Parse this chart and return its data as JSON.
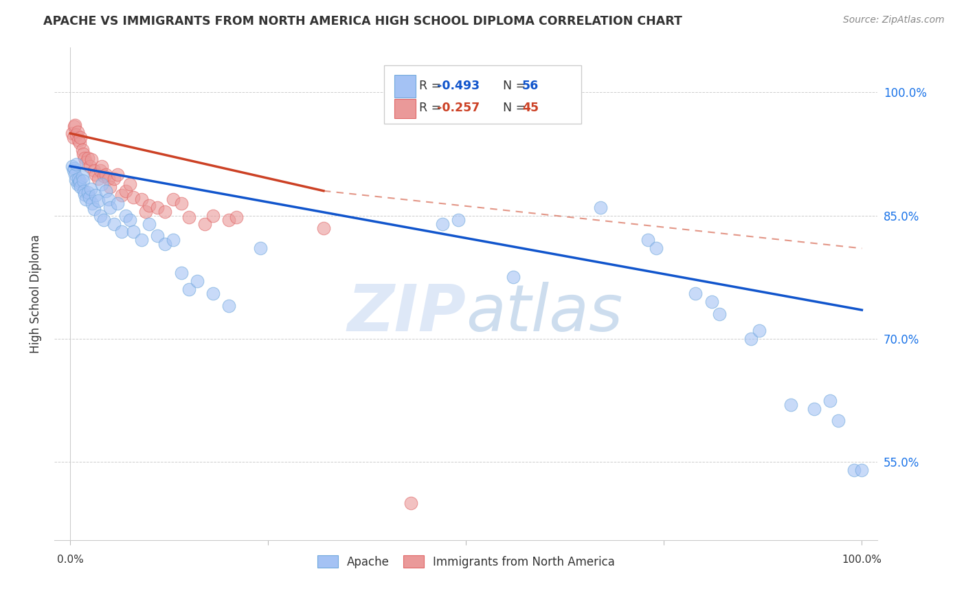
{
  "title": "APACHE VS IMMIGRANTS FROM NORTH AMERICA HIGH SCHOOL DIPLOMA CORRELATION CHART",
  "source": "Source: ZipAtlas.com",
  "ylabel": "High School Diploma",
  "ytick_labels": [
    "55.0%",
    "70.0%",
    "85.0%",
    "100.0%"
  ],
  "ytick_values": [
    0.55,
    0.7,
    0.85,
    1.0
  ],
  "legend_blue_label": "Apache",
  "legend_pink_label": "Immigrants from North America",
  "watermark_zip": "ZIP",
  "watermark_atlas": "atlas",
  "blue_color": "#a4c2f4",
  "pink_color": "#ea9999",
  "blue_edge_color": "#6fa8dc",
  "pink_edge_color": "#e06666",
  "blue_line_color": "#1155cc",
  "pink_line_color": "#cc4125",
  "blue_scatter": [
    [
      0.002,
      0.91
    ],
    [
      0.004,
      0.905
    ],
    [
      0.005,
      0.907
    ],
    [
      0.006,
      0.9
    ],
    [
      0.007,
      0.893
    ],
    [
      0.008,
      0.912
    ],
    [
      0.009,
      0.888
    ],
    [
      0.01,
      0.895
    ],
    [
      0.011,
      0.89
    ],
    [
      0.012,
      0.892
    ],
    [
      0.013,
      0.885
    ],
    [
      0.015,
      0.897
    ],
    [
      0.016,
      0.892
    ],
    [
      0.017,
      0.88
    ],
    [
      0.018,
      0.876
    ],
    [
      0.02,
      0.87
    ],
    [
      0.022,
      0.878
    ],
    [
      0.024,
      0.872
    ],
    [
      0.026,
      0.882
    ],
    [
      0.028,
      0.865
    ],
    [
      0.03,
      0.858
    ],
    [
      0.032,
      0.875
    ],
    [
      0.035,
      0.868
    ],
    [
      0.038,
      0.85
    ],
    [
      0.04,
      0.888
    ],
    [
      0.042,
      0.845
    ],
    [
      0.045,
      0.88
    ],
    [
      0.048,
      0.87
    ],
    [
      0.05,
      0.86
    ],
    [
      0.055,
      0.84
    ],
    [
      0.06,
      0.865
    ],
    [
      0.065,
      0.83
    ],
    [
      0.07,
      0.85
    ],
    [
      0.075,
      0.845
    ],
    [
      0.08,
      0.83
    ],
    [
      0.09,
      0.82
    ],
    [
      0.1,
      0.84
    ],
    [
      0.11,
      0.825
    ],
    [
      0.12,
      0.815
    ],
    [
      0.13,
      0.82
    ],
    [
      0.14,
      0.78
    ],
    [
      0.15,
      0.76
    ],
    [
      0.16,
      0.77
    ],
    [
      0.18,
      0.755
    ],
    [
      0.2,
      0.74
    ],
    [
      0.24,
      0.81
    ],
    [
      0.47,
      0.84
    ],
    [
      0.49,
      0.845
    ],
    [
      0.56,
      0.775
    ],
    [
      0.67,
      0.86
    ],
    [
      0.73,
      0.82
    ],
    [
      0.74,
      0.81
    ],
    [
      0.79,
      0.755
    ],
    [
      0.81,
      0.745
    ],
    [
      0.82,
      0.73
    ],
    [
      0.86,
      0.7
    ],
    [
      0.87,
      0.71
    ],
    [
      0.91,
      0.62
    ],
    [
      0.94,
      0.615
    ],
    [
      0.96,
      0.625
    ],
    [
      0.97,
      0.6
    ],
    [
      0.99,
      0.54
    ],
    [
      1.0,
      0.54
    ]
  ],
  "pink_scatter": [
    [
      0.002,
      0.95
    ],
    [
      0.004,
      0.945
    ],
    [
      0.005,
      0.958
    ],
    [
      0.006,
      0.96
    ],
    [
      0.008,
      0.948
    ],
    [
      0.009,
      0.952
    ],
    [
      0.01,
      0.942
    ],
    [
      0.012,
      0.938
    ],
    [
      0.013,
      0.945
    ],
    [
      0.015,
      0.93
    ],
    [
      0.016,
      0.925
    ],
    [
      0.018,
      0.92
    ],
    [
      0.02,
      0.915
    ],
    [
      0.022,
      0.92
    ],
    [
      0.025,
      0.91
    ],
    [
      0.027,
      0.918
    ],
    [
      0.03,
      0.905
    ],
    [
      0.032,
      0.9
    ],
    [
      0.035,
      0.895
    ],
    [
      0.038,
      0.905
    ],
    [
      0.04,
      0.91
    ],
    [
      0.042,
      0.898
    ],
    [
      0.045,
      0.9
    ],
    [
      0.048,
      0.895
    ],
    [
      0.05,
      0.885
    ],
    [
      0.055,
      0.895
    ],
    [
      0.06,
      0.9
    ],
    [
      0.065,
      0.875
    ],
    [
      0.07,
      0.88
    ],
    [
      0.075,
      0.888
    ],
    [
      0.08,
      0.872
    ],
    [
      0.09,
      0.87
    ],
    [
      0.095,
      0.855
    ],
    [
      0.1,
      0.862
    ],
    [
      0.11,
      0.86
    ],
    [
      0.12,
      0.855
    ],
    [
      0.13,
      0.87
    ],
    [
      0.14,
      0.865
    ],
    [
      0.15,
      0.848
    ],
    [
      0.17,
      0.84
    ],
    [
      0.18,
      0.85
    ],
    [
      0.2,
      0.845
    ],
    [
      0.21,
      0.848
    ],
    [
      0.32,
      0.835
    ],
    [
      0.43,
      0.5
    ]
  ],
  "blue_line": [
    [
      0.0,
      0.91
    ],
    [
      1.0,
      0.735
    ]
  ],
  "pink_line_solid": [
    [
      0.0,
      0.95
    ],
    [
      0.32,
      0.88
    ]
  ],
  "pink_line_dashed": [
    [
      0.32,
      0.88
    ],
    [
      1.0,
      0.81
    ]
  ],
  "xlim": [
    -0.02,
    1.02
  ],
  "ylim": [
    0.455,
    1.055
  ],
  "xtick_positions": [
    0.0,
    0.5,
    1.0
  ],
  "xtick_labels_show": [
    "0.0%",
    "",
    "100.0%"
  ]
}
